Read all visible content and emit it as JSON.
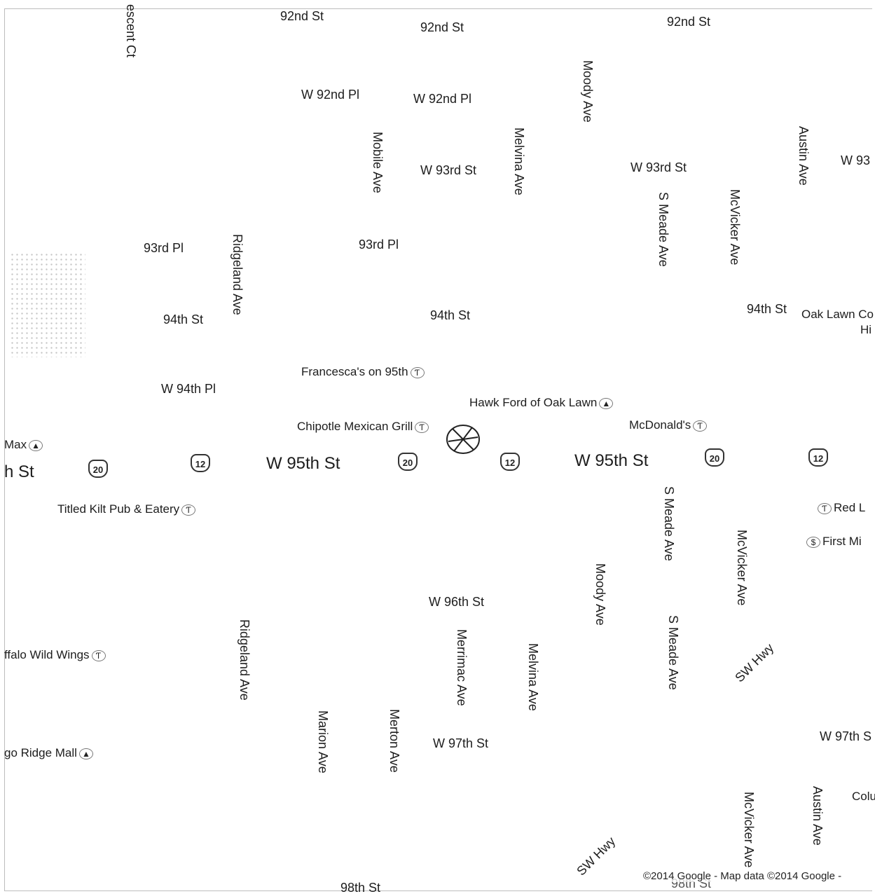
{
  "streets": {
    "w92nd_st_top": "92nd St",
    "n92nd_st_mid": "92nd St",
    "n92nd_st_right": "92nd St",
    "crescent_ct": "escent Ct",
    "w92nd_pl_left": "W 92nd Pl",
    "w92nd_pl_right": "W 92nd Pl",
    "moody_ave_top": "Moody Ave",
    "mobile_ave": "Mobile Ave",
    "melvina_ave_top": "Melvina Ave",
    "w93rd_st_left": "W 93rd St",
    "w93rd_st_right": "W 93rd St",
    "w93_edge": "W 93",
    "austin_ave_top": "Austin Ave",
    "s_meade_ave_top": "S Meade Ave",
    "mcvicker_ave_top": "McVicker Ave",
    "n93rd_pl_left": "93rd Pl",
    "n93rd_pl_mid": "93rd Pl",
    "ridgeland_ave_top": "Ridgeland Ave",
    "n94th_st_left": "94th St",
    "n94th_st_mid": "94th St",
    "n94th_st_right": "94th St",
    "w94th_pl": "W 94th Pl",
    "w95th_st_edge": "h St",
    "w95th_st_mid": "W 95th St",
    "w95th_st_right": "W 95th St",
    "s_meade_ave_mid": "S Meade Ave",
    "mcvicker_ave_mid": "McVicker Ave",
    "moody_ave_mid": "Moody Ave",
    "w96th_st": "W 96th St",
    "s_meade_ave_low": "S Meade Ave",
    "sw_hwy_upper": "SW Hwy",
    "ridgeland_ave_low": "Ridgeland Ave",
    "merrimac_ave": "Merrimac Ave",
    "melvina_ave_low": "Melvina Ave",
    "marion_ave": "Marion Ave",
    "merton_ave": "Merton Ave",
    "w97th_st_mid": "W 97th St",
    "w97th_st_right": "W 97th S",
    "mcvicker_ave_low": "McVicker Ave",
    "austin_ave_low": "Austin Ave",
    "sw_hwy_lower": "SW Hwy",
    "n98th_st": "98th St",
    "n98th_st_right": "98th St"
  },
  "pois": {
    "oak_lawn_line1": "Oak Lawn Co",
    "oak_lawn_line2": "Hi",
    "francescas": "Francesca's on 95th",
    "hawk_ford": "Hawk Ford of Oak Lawn",
    "chipotle": "Chipotle Mexican Grill",
    "mcdonalds": "McDonald's",
    "carmax_edge": "Max",
    "titled_kilt": "Titled Kilt Pub & Eatery",
    "red_l": "Red L",
    "first_mi": "First Mi",
    "buffalo_wild_wings": "ffalo Wild Wings",
    "chicago_ridge_mall": "go Ridge Mall",
    "colu": "Colu"
  },
  "icons": {
    "restaurant": "Ƭ",
    "shopping": "▲",
    "bank": "$"
  },
  "shields": {
    "us20_a": "20",
    "us12_a": "12",
    "us20_b": "20",
    "us12_b": "12",
    "us20_c": "20",
    "us12_c": "12"
  },
  "attribution": "©2014 Google - Map data ©2014 Google -"
}
